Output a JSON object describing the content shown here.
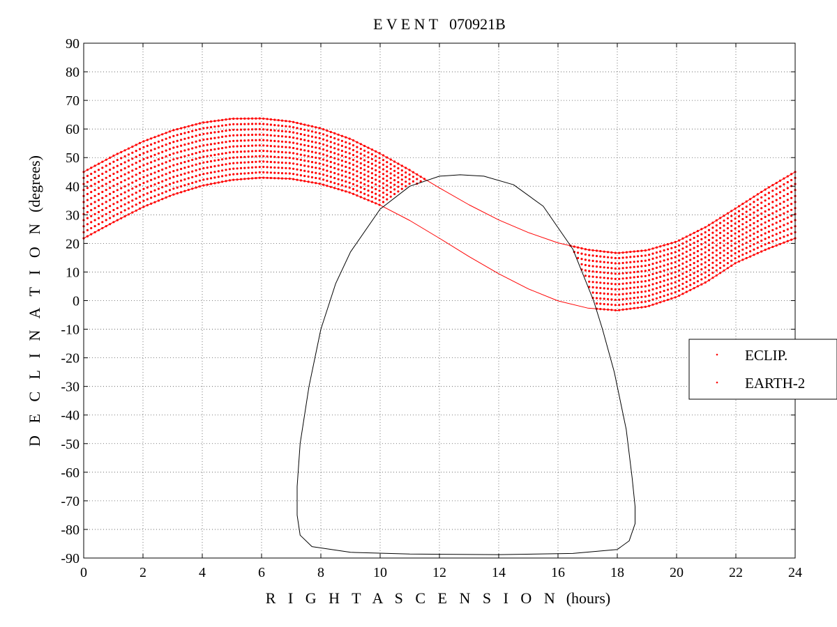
{
  "chart_data": {
    "type": "scatter",
    "title": "E V E N T   070921B",
    "xlabel": "R I G H T   A S C E N S I O N",
    "xlabel_unit": "(hours)",
    "ylabel": "D E C L I N A T I O N",
    "ylabel_unit": "(degrees)",
    "xlim": [
      0,
      24
    ],
    "ylim": [
      -90,
      90
    ],
    "xticks": [
      0,
      2,
      4,
      6,
      8,
      10,
      12,
      14,
      16,
      18,
      20,
      22,
      24
    ],
    "yticks": [
      90,
      80,
      70,
      60,
      50,
      40,
      30,
      20,
      10,
      0,
      -10,
      -20,
      -30,
      -40,
      -50,
      -60,
      -70,
      -80,
      -90
    ],
    "grid": true,
    "legend_position": "right",
    "series": [
      {
        "name": "ECLIP.",
        "color": "#ff0000",
        "kind": "curve",
        "x": [
          0,
          1,
          2,
          3,
          4,
          5,
          6,
          7,
          8,
          9,
          10,
          11,
          12,
          13,
          14,
          15,
          16,
          17,
          18,
          19,
          20,
          21,
          22,
          23,
          24
        ],
        "y": [
          21.8,
          27.4,
          32.7,
          37.0,
          40.2,
          42.2,
          43.0,
          42.6,
          40.8,
          37.7,
          33.4,
          28.0,
          21.8,
          15.4,
          9.4,
          4.1,
          -0.1,
          -2.6,
          -3.4,
          -2.1,
          1.3,
          6.5,
          13.2,
          17.8,
          21.8
        ]
      },
      {
        "name": "EARTH-2",
        "color": "#ff0000",
        "kind": "curve",
        "x": [
          0,
          1,
          2,
          3,
          4,
          5,
          6,
          7,
          8,
          9,
          10,
          11,
          12,
          13,
          14,
          15,
          16,
          17,
          18,
          19,
          20,
          21,
          22,
          23,
          24
        ],
        "y": [
          45.0,
          50.6,
          55.6,
          59.5,
          62.2,
          63.6,
          63.7,
          62.6,
          60.2,
          56.5,
          51.4,
          45.6,
          39.4,
          33.5,
          28.2,
          23.8,
          20.2,
          17.8,
          16.6,
          17.6,
          20.6,
          25.8,
          32.3,
          38.9,
          45.0
        ]
      },
      {
        "name": "",
        "color": "#000000",
        "kind": "contour",
        "x": [
          8.5,
          9.0,
          10.0,
          11.0,
          12.0,
          12.7,
          13.5,
          14.5,
          15.5,
          16.5,
          17.2,
          17.5,
          17.9,
          18.3,
          18.5,
          18.6,
          18.6,
          18.4,
          18.0,
          16.5,
          14.0,
          11.0,
          9.0,
          7.7,
          7.3,
          7.2,
          7.2,
          7.3,
          7.6,
          8.0,
          8.5
        ],
        "y": [
          6.0,
          17.0,
          32.0,
          40.0,
          43.5,
          44.0,
          43.5,
          40.5,
          33.0,
          18.0,
          0.0,
          -10.0,
          -25.0,
          -45.0,
          -62.0,
          -72.0,
          -78.0,
          -84.0,
          -87.0,
          -88.4,
          -88.8,
          -88.6,
          -88.0,
          -86.0,
          -82.0,
          -75.0,
          -65.0,
          -50.0,
          -30.0,
          -10.0,
          6.0
        ]
      }
    ]
  }
}
